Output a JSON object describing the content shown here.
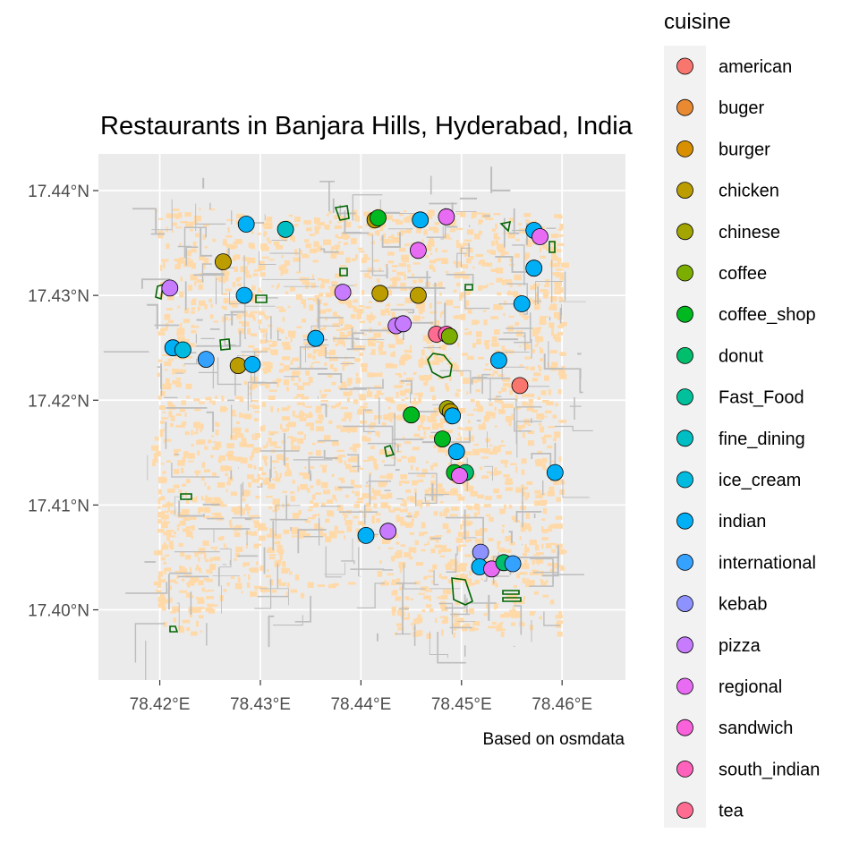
{
  "chart_data": {
    "type": "scatter",
    "title": "Restaurants in Banjara Hills, Hyderabad, India",
    "caption": "Based on osmdata",
    "xlim": [
      78.4139,
      78.4663
    ],
    "ylim": [
      17.3933,
      17.4435
    ],
    "x_ticks": [
      78.42,
      78.43,
      78.44,
      78.45,
      78.46
    ],
    "x_tick_labels": [
      "78.42°E",
      "78.43°E",
      "78.44°E",
      "78.45°E",
      "78.46°E"
    ],
    "y_ticks": [
      17.4,
      17.41,
      17.42,
      17.43,
      17.44
    ],
    "y_tick_labels": [
      "17.40°N",
      "17.41°N",
      "17.42°N",
      "17.43°N",
      "17.44°N"
    ],
    "grid": true,
    "legend": {
      "title": "cuisine",
      "placement": "right",
      "entries": [
        {
          "name": "american",
          "color": "#F8766D"
        },
        {
          "name": "buger",
          "color": "#E98A33"
        },
        {
          "name": "burger",
          "color": "#D89000"
        },
        {
          "name": "chicken",
          "color": "#BB9D00"
        },
        {
          "name": "chinese",
          "color": "#A3A500"
        },
        {
          "name": "coffee",
          "color": "#7CAE00"
        },
        {
          "name": "coffee_shop",
          "color": "#00B81F"
        },
        {
          "name": "donut",
          "color": "#00BE6B"
        },
        {
          "name": "Fast_Food",
          "color": "#00C19C"
        },
        {
          "name": "fine_dining",
          "color": "#00BFC4"
        },
        {
          "name": "ice_cream",
          "color": "#00BAE0"
        },
        {
          "name": "indian",
          "color": "#00B0F6"
        },
        {
          "name": "international",
          "color": "#35A2FF"
        },
        {
          "name": "kebab",
          "color": "#8E92FF"
        },
        {
          "name": "pizza",
          "color": "#C77CFF"
        },
        {
          "name": "regional",
          "color": "#E76BF3"
        },
        {
          "name": "sandwich",
          "color": "#FA62DB"
        },
        {
          "name": "south_indian",
          "color": "#FF62BC"
        },
        {
          "name": "tea",
          "color": "#FF6C91"
        }
      ]
    },
    "restaurants": [
      {
        "lon": 78.421,
        "lat": 17.4307,
        "cuisine": "pizza"
      },
      {
        "lon": 78.4213,
        "lat": 17.425,
        "cuisine": "indian"
      },
      {
        "lon": 78.4223,
        "lat": 17.4248,
        "cuisine": "ice_cream"
      },
      {
        "lon": 78.4246,
        "lat": 17.4239,
        "cuisine": "international"
      },
      {
        "lon": 78.4263,
        "lat": 17.4332,
        "cuisine": "chicken"
      },
      {
        "lon": 78.4278,
        "lat": 17.4233,
        "cuisine": "chicken"
      },
      {
        "lon": 78.4286,
        "lat": 17.4368,
        "cuisine": "indian"
      },
      {
        "lon": 78.4284,
        "lat": 17.43,
        "cuisine": "indian"
      },
      {
        "lon": 78.4292,
        "lat": 17.4234,
        "cuisine": "indian"
      },
      {
        "lon": 78.4325,
        "lat": 17.4363,
        "cuisine": "fine_dining"
      },
      {
        "lon": 78.4355,
        "lat": 17.4259,
        "cuisine": "indian"
      },
      {
        "lon": 78.4382,
        "lat": 17.4303,
        "cuisine": "pizza"
      },
      {
        "lon": 78.4405,
        "lat": 17.4071,
        "cuisine": "indian"
      },
      {
        "lon": 78.4414,
        "lat": 17.4372,
        "cuisine": "chicken"
      },
      {
        "lon": 78.4417,
        "lat": 17.4374,
        "cuisine": "coffee_shop"
      },
      {
        "lon": 78.4419,
        "lat": 17.4302,
        "cuisine": "chicken"
      },
      {
        "lon": 78.4427,
        "lat": 17.4075,
        "cuisine": "pizza"
      },
      {
        "lon": 78.4435,
        "lat": 17.4271,
        "cuisine": "pizza"
      },
      {
        "lon": 78.4442,
        "lat": 17.4273,
        "cuisine": "pizza"
      },
      {
        "lon": 78.445,
        "lat": 17.4186,
        "cuisine": "coffee_shop"
      },
      {
        "lon": 78.4457,
        "lat": 17.4343,
        "cuisine": "regional"
      },
      {
        "lon": 78.4457,
        "lat": 17.43,
        "cuisine": "chicken"
      },
      {
        "lon": 78.4459,
        "lat": 17.4372,
        "cuisine": "indian"
      },
      {
        "lon": 78.4475,
        "lat": 17.4263,
        "cuisine": "tea"
      },
      {
        "lon": 78.4485,
        "lat": 17.4263,
        "cuisine": "south_indian"
      },
      {
        "lon": 78.4488,
        "lat": 17.4261,
        "cuisine": "coffee"
      },
      {
        "lon": 78.4485,
        "lat": 17.4375,
        "cuisine": "regional"
      },
      {
        "lon": 78.4481,
        "lat": 17.4163,
        "cuisine": "coffee_shop"
      },
      {
        "lon": 78.4486,
        "lat": 17.4192,
        "cuisine": "chinese"
      },
      {
        "lon": 78.4489,
        "lat": 17.4189,
        "cuisine": "chicken"
      },
      {
        "lon": 78.4491,
        "lat": 17.4185,
        "cuisine": "indian"
      },
      {
        "lon": 78.4495,
        "lat": 17.4151,
        "cuisine": "indian"
      },
      {
        "lon": 78.4493,
        "lat": 17.4131,
        "cuisine": "coffee_shop"
      },
      {
        "lon": 78.4504,
        "lat": 17.4131,
        "cuisine": "donut"
      },
      {
        "lon": 78.4498,
        "lat": 17.4128,
        "cuisine": "regional"
      },
      {
        "lon": 78.4519,
        "lat": 17.4055,
        "cuisine": "kebab"
      },
      {
        "lon": 78.4518,
        "lat": 17.4041,
        "cuisine": "indian"
      },
      {
        "lon": 78.453,
        "lat": 17.4039,
        "cuisine": "regional"
      },
      {
        "lon": 78.4542,
        "lat": 17.4045,
        "cuisine": "donut"
      },
      {
        "lon": 78.4551,
        "lat": 17.4044,
        "cuisine": "international"
      },
      {
        "lon": 78.4537,
        "lat": 17.4238,
        "cuisine": "indian"
      },
      {
        "lon": 78.4558,
        "lat": 17.4214,
        "cuisine": "american"
      },
      {
        "lon": 78.456,
        "lat": 17.4292,
        "cuisine": "indian"
      },
      {
        "lon": 78.4572,
        "lat": 17.4326,
        "cuisine": "indian"
      },
      {
        "lon": 78.4572,
        "lat": 17.4362,
        "cuisine": "indian"
      },
      {
        "lon": 78.4578,
        "lat": 17.4356,
        "cuisine": "regional"
      },
      {
        "lon": 78.4593,
        "lat": 17.4131,
        "cuisine": "indian"
      }
    ]
  },
  "map_style": {
    "panel_bg": "#EBEBEB",
    "gridline": "#FFFFFF",
    "building_fill": "#FFD9A8",
    "street_color": "#BDBDBD",
    "park_outline": "#006400",
    "point_outline": "#000000",
    "legend_key_bg": "#F2F2F2"
  }
}
